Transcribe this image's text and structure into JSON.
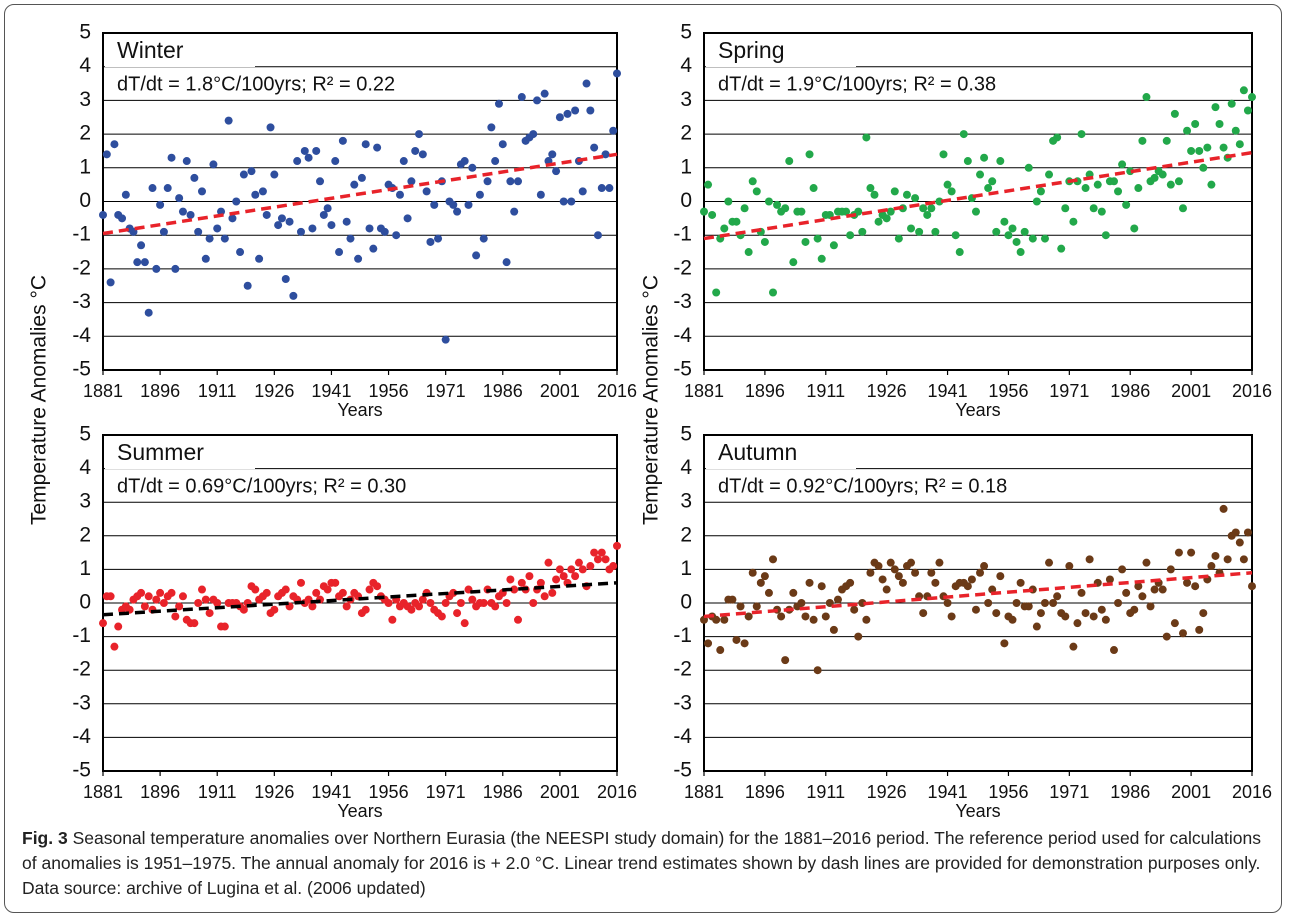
{
  "chart_data": [
    {
      "type": "scatter",
      "title": "Winter",
      "annotation": "dT/dt = 1.8°C/100yrs; R² = 0.22",
      "xlabel": "Years",
      "ylabel": "Temperature Anomalies °C",
      "color": "#2e4e9e",
      "x": [
        1881,
        1882,
        1883,
        1884,
        1885,
        1886,
        1887,
        1888,
        1889,
        1890,
        1891,
        1892,
        1893,
        1894,
        1895,
        1896,
        1897,
        1898,
        1899,
        1900,
        1901,
        1902,
        1903,
        1904,
        1905,
        1906,
        1907,
        1908,
        1909,
        1910,
        1911,
        1912,
        1913,
        1914,
        1915,
        1916,
        1917,
        1918,
        1919,
        1920,
        1921,
        1922,
        1923,
        1924,
        1925,
        1926,
        1927,
        1928,
        1929,
        1930,
        1931,
        1932,
        1933,
        1934,
        1935,
        1936,
        1937,
        1938,
        1939,
        1940,
        1941,
        1942,
        1943,
        1944,
        1945,
        1946,
        1947,
        1948,
        1949,
        1950,
        1951,
        1952,
        1953,
        1954,
        1955,
        1956,
        1957,
        1958,
        1959,
        1960,
        1961,
        1962,
        1963,
        1964,
        1965,
        1966,
        1967,
        1968,
        1969,
        1970,
        1971,
        1972,
        1973,
        1974,
        1975,
        1976,
        1977,
        1978,
        1979,
        1980,
        1981,
        1982,
        1983,
        1984,
        1985,
        1986,
        1987,
        1988,
        1989,
        1990,
        1991,
        1992,
        1993,
        1994,
        1995,
        1996,
        1997,
        1998,
        1999,
        2000,
        2001,
        2002,
        2003,
        2004,
        2005,
        2006,
        2007,
        2008,
        2009,
        2010,
        2011,
        2012,
        2013,
        2014,
        2015,
        2016
      ],
      "values": [
        -0.4,
        1.4,
        -2.4,
        1.7,
        -0.4,
        -0.5,
        0.2,
        -0.8,
        -0.9,
        -1.8,
        -1.3,
        -1.8,
        -3.3,
        0.4,
        -2.0,
        -0.1,
        -0.9,
        0.4,
        1.3,
        -2.0,
        0.1,
        -0.3,
        1.2,
        -0.4,
        0.7,
        -0.9,
        0.3,
        -1.7,
        -1.1,
        1.1,
        -0.8,
        -0.3,
        -1.1,
        2.4,
        -0.5,
        0.0,
        -1.5,
        0.8,
        -2.5,
        0.9,
        0.2,
        -1.7,
        0.3,
        -0.4,
        2.2,
        0.8,
        -0.7,
        -0.5,
        -2.3,
        -0.6,
        -2.8,
        1.2,
        -0.9,
        1.5,
        1.3,
        -0.8,
        1.5,
        0.6,
        -0.4,
        -0.2,
        -0.7,
        1.2,
        -1.5,
        1.8,
        -0.6,
        -1.1,
        0.5,
        -1.7,
        0.7,
        1.7,
        -0.8,
        -1.4,
        1.6,
        -0.8,
        -0.9,
        0.5,
        0.4,
        -1.0,
        0.2,
        1.2,
        -0.5,
        0.6,
        1.5,
        2.0,
        1.4,
        0.3,
        -1.2,
        -0.1,
        -1.1,
        0.6,
        -4.1,
        0.0,
        -0.1,
        -0.3,
        1.1,
        1.2,
        -0.1,
        1.0,
        -1.6,
        0.2,
        -1.1,
        0.6,
        2.2,
        1.2,
        2.9,
        1.7,
        -1.8,
        0.6,
        -0.3,
        0.6,
        3.1,
        1.8,
        1.9,
        2.0,
        3.0,
        0.2,
        3.2,
        1.2,
        1.4,
        0.9,
        2.5,
        0.0,
        2.6,
        0.0,
        2.7,
        1.2,
        0.3,
        3.5,
        2.7,
        1.6,
        -1.0,
        0.4,
        1.4,
        0.4,
        2.1,
        3.8
      ],
      "trend": {
        "x": [
          1881,
          2016
        ],
        "values": [
          -0.95,
          1.4
        ],
        "color": "#e8232a"
      },
      "xlim": [
        1881,
        2016
      ],
      "xticks": [
        1881,
        1896,
        1911,
        1926,
        1941,
        1956,
        1971,
        1986,
        2001,
        2016
      ],
      "ylim": [
        -5,
        5
      ],
      "yticks": [
        -5,
        -4,
        -3,
        -2,
        -1,
        0,
        1,
        2,
        3,
        4,
        5
      ],
      "grid": true
    },
    {
      "type": "scatter",
      "title": "Spring",
      "annotation": "dT/dt = 1.9°C/100yrs; R² = 0.38",
      "xlabel": "Years",
      "ylabel": "Temperature Anomalies °C",
      "color": "#22a84a",
      "x": [
        1881,
        1882,
        1883,
        1884,
        1885,
        1886,
        1887,
        1888,
        1889,
        1890,
        1891,
        1892,
        1893,
        1894,
        1895,
        1896,
        1897,
        1898,
        1899,
        1900,
        1901,
        1902,
        1903,
        1904,
        1905,
        1906,
        1907,
        1908,
        1909,
        1910,
        1911,
        1912,
        1913,
        1914,
        1915,
        1916,
        1917,
        1918,
        1919,
        1920,
        1921,
        1922,
        1923,
        1924,
        1925,
        1926,
        1927,
        1928,
        1929,
        1930,
        1931,
        1932,
        1933,
        1934,
        1935,
        1936,
        1937,
        1938,
        1939,
        1940,
        1941,
        1942,
        1943,
        1944,
        1945,
        1946,
        1947,
        1948,
        1949,
        1950,
        1951,
        1952,
        1953,
        1954,
        1955,
        1956,
        1957,
        1958,
        1959,
        1960,
        1961,
        1962,
        1963,
        1964,
        1965,
        1966,
        1967,
        1968,
        1969,
        1970,
        1971,
        1972,
        1973,
        1974,
        1975,
        1976,
        1977,
        1978,
        1979,
        1980,
        1981,
        1982,
        1983,
        1984,
        1985,
        1986,
        1987,
        1988,
        1989,
        1990,
        1991,
        1992,
        1993,
        1994,
        1995,
        1996,
        1997,
        1998,
        1999,
        2000,
        2001,
        2002,
        2003,
        2004,
        2005,
        2006,
        2007,
        2008,
        2009,
        2010,
        2011,
        2012,
        2013,
        2014,
        2015,
        2016
      ],
      "values": [
        -0.3,
        0.5,
        -0.4,
        -2.7,
        -1.1,
        -0.8,
        0.0,
        -0.6,
        -0.6,
        -1.0,
        -0.2,
        -1.5,
        0.6,
        0.3,
        -0.9,
        -1.2,
        0.0,
        -2.7,
        -0.1,
        -0.3,
        -0.2,
        1.2,
        -1.8,
        -0.3,
        -0.3,
        -1.2,
        1.4,
        0.4,
        -1.1,
        -1.7,
        -0.4,
        -0.4,
        -1.3,
        -0.3,
        -0.3,
        -0.3,
        -1.0,
        -0.4,
        -0.3,
        -0.9,
        1.9,
        0.4,
        0.2,
        -0.6,
        -0.4,
        -0.5,
        -0.3,
        0.3,
        -1.1,
        -0.2,
        0.2,
        -0.8,
        0.1,
        -0.9,
        -0.2,
        -0.4,
        -0.2,
        -0.9,
        0.0,
        1.4,
        0.5,
        0.3,
        -1.0,
        -1.5,
        2.0,
        1.2,
        0.1,
        -0.3,
        0.8,
        1.3,
        0.4,
        0.6,
        -0.9,
        1.2,
        -0.6,
        -1.0,
        -0.8,
        -1.2,
        -1.5,
        -0.9,
        1.0,
        -1.1,
        0.0,
        0.3,
        -1.1,
        0.8,
        1.8,
        1.9,
        -1.4,
        -0.2,
        0.6,
        -0.6,
        0.6,
        2.0,
        0.4,
        0.8,
        -0.2,
        0.5,
        -0.3,
        -1.0,
        0.6,
        0.6,
        0.3,
        1.1,
        -0.1,
        0.9,
        -0.8,
        0.4,
        1.8,
        3.1,
        0.6,
        0.7,
        0.9,
        0.8,
        1.8,
        0.5,
        2.6,
        0.6,
        -0.2,
        2.1,
        1.5,
        2.3,
        1.5,
        1.0,
        1.6,
        0.5,
        2.8,
        2.3,
        1.6,
        1.3,
        2.9,
        2.1,
        1.7,
        3.3,
        2.7,
        3.1
      ],
      "trend": {
        "x": [
          1881,
          2016
        ],
        "values": [
          -1.1,
          1.45
        ],
        "color": "#e8232a"
      },
      "xlim": [
        1881,
        2016
      ],
      "xticks": [
        1881,
        1896,
        1911,
        1926,
        1941,
        1956,
        1971,
        1986,
        2001,
        2016
      ],
      "ylim": [
        -5,
        5
      ],
      "yticks": [
        -5,
        -4,
        -3,
        -2,
        -1,
        0,
        1,
        2,
        3,
        4,
        5
      ],
      "grid": true
    },
    {
      "type": "scatter",
      "title": "Summer",
      "annotation": "dT/dt = 0.69°C/100yrs; R² = 0.30",
      "xlabel": "Years",
      "color": "#e8232a",
      "x": [
        1881,
        1882,
        1883,
        1884,
        1885,
        1886,
        1887,
        1888,
        1889,
        1890,
        1891,
        1892,
        1893,
        1894,
        1895,
        1896,
        1897,
        1898,
        1899,
        1900,
        1901,
        1902,
        1903,
        1904,
        1905,
        1906,
        1907,
        1908,
        1909,
        1910,
        1911,
        1912,
        1913,
        1914,
        1915,
        1916,
        1917,
        1918,
        1919,
        1920,
        1921,
        1922,
        1923,
        1924,
        1925,
        1926,
        1927,
        1928,
        1929,
        1930,
        1931,
        1932,
        1933,
        1934,
        1935,
        1936,
        1937,
        1938,
        1939,
        1940,
        1941,
        1942,
        1943,
        1944,
        1945,
        1946,
        1947,
        1948,
        1949,
        1950,
        1951,
        1952,
        1953,
        1954,
        1955,
        1956,
        1957,
        1958,
        1959,
        1960,
        1961,
        1962,
        1963,
        1964,
        1965,
        1966,
        1967,
        1968,
        1969,
        1970,
        1971,
        1972,
        1973,
        1974,
        1975,
        1976,
        1977,
        1978,
        1979,
        1980,
        1981,
        1982,
        1983,
        1984,
        1985,
        1986,
        1987,
        1988,
        1989,
        1990,
        1991,
        1992,
        1993,
        1994,
        1995,
        1996,
        1997,
        1998,
        1999,
        2000,
        2001,
        2002,
        2003,
        2004,
        2005,
        2006,
        2007,
        2008,
        2009,
        2010,
        2011,
        2012,
        2013,
        2014,
        2015,
        2016
      ],
      "values": [
        -0.6,
        0.2,
        0.2,
        -1.3,
        -0.7,
        -0.2,
        -0.1,
        -0.2,
        0.1,
        0.2,
        0.3,
        -0.1,
        0.2,
        -0.2,
        0.1,
        0.3,
        0.0,
        0.2,
        0.3,
        -0.4,
        -0.1,
        0.2,
        -0.5,
        -0.6,
        -0.6,
        0.0,
        0.4,
        0.1,
        -0.3,
        0.1,
        0.0,
        -0.7,
        -0.7,
        0.0,
        0.0,
        0.0,
        -0.1,
        -0.2,
        0.0,
        0.5,
        0.4,
        0.1,
        0.2,
        0.3,
        -0.3,
        -0.2,
        0.2,
        0.3,
        0.4,
        -0.1,
        0.2,
        0.1,
        0.6,
        0.0,
        0.1,
        -0.1,
        0.3,
        0.1,
        0.5,
        0.4,
        0.6,
        0.6,
        0.2,
        0.3,
        -0.1,
        0.1,
        0.3,
        0.2,
        -0.3,
        -0.2,
        0.4,
        0.6,
        0.5,
        0.2,
        0.1,
        0.0,
        -0.5,
        0.1,
        -0.1,
        0.0,
        -0.1,
        -0.2,
        0.0,
        -0.1,
        0.1,
        0.3,
        0.0,
        -0.2,
        -0.3,
        -0.4,
        0.0,
        0.2,
        0.3,
        -0.3,
        0.0,
        -0.6,
        0.4,
        0.1,
        -0.1,
        0.0,
        0.0,
        0.4,
        0.0,
        -0.1,
        0.2,
        0.3,
        0.0,
        0.7,
        0.4,
        -0.5,
        0.6,
        0.4,
        0.8,
        0.0,
        0.4,
        0.6,
        0.2,
        1.2,
        0.3,
        0.7,
        1.0,
        0.8,
        0.6,
        1.0,
        0.8,
        1.2,
        1.0,
        0.5,
        1.1,
        1.5,
        1.3,
        1.5,
        1.3,
        1.0,
        1.1,
        1.7
      ],
      "trend": {
        "x": [
          1881,
          2016
        ],
        "values": [
          -0.35,
          0.6
        ],
        "color": "#000000"
      },
      "xlim": [
        1881,
        2016
      ],
      "xticks": [
        1881,
        1896,
        1911,
        1926,
        1941,
        1956,
        1971,
        1986,
        2001,
        2016
      ],
      "ylim": [
        -5,
        5
      ],
      "yticks": [
        -5,
        -4,
        -3,
        -2,
        -1,
        0,
        1,
        2,
        3,
        4,
        5
      ],
      "grid": true
    },
    {
      "type": "scatter",
      "title": "Autumn",
      "annotation": "dT/dt = 0.92°C/100yrs; R² = 0.18",
      "xlabel": "Years",
      "color": "#6b3a17",
      "x": [
        1881,
        1882,
        1883,
        1884,
        1885,
        1886,
        1887,
        1888,
        1889,
        1890,
        1891,
        1892,
        1893,
        1894,
        1895,
        1896,
        1897,
        1898,
        1899,
        1900,
        1901,
        1902,
        1903,
        1904,
        1905,
        1906,
        1907,
        1908,
        1909,
        1910,
        1911,
        1912,
        1913,
        1914,
        1915,
        1916,
        1917,
        1918,
        1919,
        1920,
        1921,
        1922,
        1923,
        1924,
        1925,
        1926,
        1927,
        1928,
        1929,
        1930,
        1931,
        1932,
        1933,
        1934,
        1935,
        1936,
        1937,
        1938,
        1939,
        1940,
        1941,
        1942,
        1943,
        1944,
        1945,
        1946,
        1947,
        1948,
        1949,
        1950,
        1951,
        1952,
        1953,
        1954,
        1955,
        1956,
        1957,
        1958,
        1959,
        1960,
        1961,
        1962,
        1963,
        1964,
        1965,
        1966,
        1967,
        1968,
        1969,
        1970,
        1971,
        1972,
        1973,
        1974,
        1975,
        1976,
        1977,
        1978,
        1979,
        1980,
        1981,
        1982,
        1983,
        1984,
        1985,
        1986,
        1987,
        1988,
        1989,
        1990,
        1991,
        1992,
        1993,
        1994,
        1995,
        1996,
        1997,
        1998,
        1999,
        2000,
        2001,
        2002,
        2003,
        2004,
        2005,
        2006,
        2007,
        2008,
        2009,
        2010,
        2011,
        2012,
        2013,
        2014,
        2015,
        2016
      ],
      "values": [
        -0.5,
        -1.2,
        -0.4,
        -0.5,
        -1.4,
        -0.5,
        0.1,
        0.1,
        -1.1,
        -0.1,
        -1.2,
        -0.4,
        0.9,
        -0.1,
        0.6,
        0.8,
        0.3,
        1.3,
        -0.2,
        -0.4,
        -1.7,
        -0.2,
        0.3,
        -0.1,
        0.0,
        -0.4,
        0.6,
        -0.5,
        -2.0,
        0.5,
        -0.4,
        0.0,
        -0.8,
        0.1,
        0.4,
        0.5,
        0.6,
        -0.2,
        -1.0,
        0.0,
        -0.5,
        0.9,
        1.2,
        1.1,
        0.7,
        0.4,
        1.2,
        1.0,
        0.8,
        0.6,
        1.1,
        1.2,
        0.9,
        0.2,
        -0.3,
        0.2,
        0.9,
        0.6,
        1.2,
        0.2,
        0.0,
        -0.4,
        0.5,
        0.6,
        0.6,
        0.5,
        0.7,
        -0.2,
        0.9,
        1.1,
        0.0,
        0.4,
        -0.3,
        0.8,
        -1.2,
        -0.4,
        -0.5,
        0.0,
        0.6,
        -0.1,
        -0.1,
        0.4,
        -0.7,
        -0.3,
        0.0,
        1.2,
        0.0,
        0.2,
        -0.3,
        -0.4,
        1.1,
        -1.3,
        -0.6,
        0.3,
        -0.3,
        1.3,
        -0.4,
        0.6,
        -0.2,
        -0.5,
        0.7,
        -1.4,
        0.0,
        1.0,
        0.3,
        -0.3,
        -0.2,
        0.5,
        0.2,
        1.2,
        -0.1,
        0.4,
        0.6,
        0.4,
        -1.0,
        1.0,
        -0.6,
        1.5,
        -0.9,
        0.6,
        1.5,
        0.5,
        -0.8,
        -0.3,
        0.7,
        1.1,
        1.4,
        0.9,
        2.8,
        1.3,
        2.0,
        2.1,
        1.8,
        1.3,
        2.1,
        0.5
      ],
      "trend": {
        "x": [
          1881,
          2016
        ],
        "values": [
          -0.4,
          0.9
        ],
        "color": "#e8232a"
      },
      "xlim": [
        1881,
        2016
      ],
      "xticks": [
        1881,
        1896,
        1911,
        1926,
        1941,
        1956,
        1971,
        1986,
        2001,
        2016
      ],
      "ylim": [
        -5,
        5
      ],
      "yticks": [
        -5,
        -4,
        -3,
        -2,
        -1,
        0,
        1,
        2,
        3,
        4,
        5
      ],
      "grid": true
    }
  ],
  "caption": {
    "label": "Fig. 3",
    "text": "Seasonal temperature anomalies over Northern Eurasia (the NEESPI study domain) for the 1881–2016 period. The reference period used for calculations of anomalies is 1951–1975. The annual anomaly for 2016 is + 2.0 °C. Linear trend estimates shown by dash lines are provided for demonstration purposes only. Data source: archive of Lugina et al. (2006 updated)"
  }
}
